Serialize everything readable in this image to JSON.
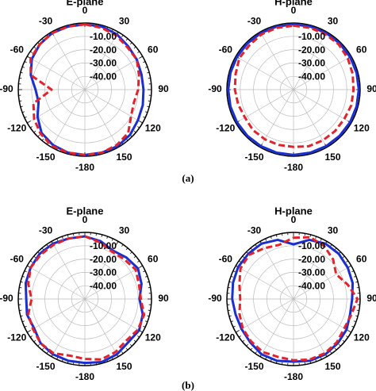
{
  "chart_data": [
    {
      "type": "polar",
      "title": "E-plane",
      "direction": "clockwise",
      "zero": "top",
      "theta": [
        0,
        15,
        30,
        45,
        60,
        75,
        90,
        105,
        120,
        135,
        150,
        165,
        180,
        195,
        210,
        225,
        240,
        255,
        270,
        285,
        300,
        315,
        330,
        345
      ],
      "thetaticks": [
        0,
        30,
        60,
        90,
        120,
        150,
        -180,
        -150,
        -120,
        -90,
        -60,
        -30
      ],
      "rlim": [
        -50,
        0
      ],
      "rticks": [
        {
          "value": -10,
          "label": "-10.00"
        },
        {
          "value": -20,
          "label": "-20.00"
        },
        {
          "value": -30,
          "label": "-30.00"
        },
        {
          "value": -40,
          "label": "-40.00"
        }
      ],
      "series": [
        {
          "color": "#1a2fd0",
          "linestyle": "solid",
          "values": [
            -1,
            -1,
            -2,
            -4,
            -5,
            -6,
            -6,
            -5,
            -4,
            -2,
            -1,
            -1,
            -1,
            -1,
            -2,
            -4,
            -9,
            -14,
            -13,
            -8,
            -4,
            -2,
            -1,
            -1
          ]
        },
        {
          "color": "#e4222b",
          "linestyle": "dashed",
          "values": [
            -1,
            -2,
            -3,
            -5,
            -5,
            -8,
            -10,
            -12,
            -10,
            -4,
            -2,
            -1,
            -1,
            -1,
            -1,
            -3,
            -6,
            -10,
            -25,
            -8,
            -3,
            -2,
            -1,
            -1
          ]
        }
      ]
    },
    {
      "type": "polar",
      "title": "H-plane",
      "direction": "clockwise",
      "zero": "top",
      "theta": [
        0,
        15,
        30,
        45,
        60,
        75,
        90,
        105,
        120,
        135,
        150,
        165,
        180,
        195,
        210,
        225,
        240,
        255,
        270,
        285,
        300,
        315,
        330,
        345
      ],
      "thetaticks": [
        0,
        30,
        60,
        90,
        120,
        150,
        -180,
        -150,
        -120,
        -90,
        -60,
        -30
      ],
      "rlim": [
        -50,
        0
      ],
      "rticks": [
        {
          "value": -10,
          "label": "-10.00"
        },
        {
          "value": -20,
          "label": "-20.00"
        },
        {
          "value": -30,
          "label": "-30.00"
        },
        {
          "value": -40,
          "label": "-40.00"
        }
      ],
      "series": [
        {
          "color": "#1a2fd0",
          "linestyle": "solid",
          "values": [
            -1,
            -1,
            -1,
            -1,
            -1,
            -1,
            -1,
            -1,
            -1,
            -1,
            -1,
            -1,
            -1,
            -1,
            -1,
            -1,
            -1,
            -1,
            -1,
            -1,
            -1,
            -1,
            -1,
            -1
          ]
        },
        {
          "color": "#e4222b",
          "linestyle": "dashed",
          "values": [
            -2,
            -2,
            -2,
            -2,
            -3,
            -4,
            -5,
            -5,
            -6,
            -6,
            -6,
            -6,
            -7,
            -7,
            -7,
            -7,
            -8,
            -7,
            -6,
            -5,
            -3,
            -3,
            -2,
            -2
          ]
        }
      ]
    },
    {
      "type": "polar",
      "title": "E-plane",
      "direction": "clockwise",
      "zero": "top",
      "theta": [
        0,
        15,
        30,
        45,
        60,
        75,
        90,
        105,
        120,
        135,
        150,
        165,
        180,
        195,
        210,
        225,
        240,
        255,
        270,
        285,
        300,
        315,
        330,
        345
      ],
      "thetaticks": [
        0,
        30,
        60,
        90,
        120,
        150,
        -180,
        -150,
        -120,
        -90,
        -60,
        -30
      ],
      "rlim": [
        -50,
        0
      ],
      "rticks": [
        {
          "value": -10,
          "label": "-10.00"
        },
        {
          "value": -20,
          "label": "-20.00"
        },
        {
          "value": -30,
          "label": "-30.00"
        },
        {
          "value": -40,
          "label": "-40.00"
        }
      ],
      "series": [
        {
          "color": "#1a2fd0",
          "linestyle": "solid",
          "values": [
            -3,
            -5,
            -8,
            -6,
            -4,
            -6,
            -9,
            -5,
            -3,
            -4,
            -2,
            -1,
            -2,
            -2,
            -2,
            -3,
            -6,
            -5,
            -6,
            -4,
            -3,
            -2,
            -2,
            -3
          ]
        },
        {
          "color": "#e4222b",
          "linestyle": "dashed",
          "values": [
            -3,
            -6,
            -9,
            -8,
            -6,
            -8,
            -8,
            -4,
            -4,
            -6,
            -4,
            -3,
            -5,
            -6,
            -3,
            -3,
            -5,
            -6,
            -10,
            -6,
            -3,
            -3,
            -3,
            -3
          ]
        }
      ]
    },
    {
      "type": "polar",
      "title": "H-plane",
      "direction": "clockwise",
      "zero": "top",
      "theta": [
        0,
        15,
        30,
        45,
        60,
        75,
        90,
        105,
        120,
        135,
        150,
        165,
        180,
        195,
        210,
        225,
        240,
        255,
        270,
        285,
        300,
        315,
        330,
        345
      ],
      "thetaticks": [
        0,
        30,
        60,
        90,
        120,
        150,
        -180,
        -150,
        -120,
        -90,
        -60,
        -30
      ],
      "rlim": [
        -50,
        0
      ],
      "rticks": [
        {
          "value": -10,
          "label": "-10.00"
        },
        {
          "value": -20,
          "label": "-20.00"
        },
        {
          "value": -30,
          "label": "-30.00"
        },
        {
          "value": -40,
          "label": "-40.00"
        }
      ],
      "series": [
        {
          "color": "#1a2fd0",
          "linestyle": "solid",
          "values": [
            -9,
            -4,
            -2,
            -2,
            -3,
            -4,
            -6,
            -6,
            -4,
            -3,
            -2,
            -2,
            -3,
            -2,
            -2,
            -4,
            -5,
            -5,
            -4,
            -3,
            -2,
            -2,
            -2,
            -4
          ]
        },
        {
          "color": "#e4222b",
          "linestyle": "dashed",
          "values": [
            -4,
            -2,
            -4,
            -8,
            -13,
            -8,
            -2,
            -5,
            -6,
            -4,
            -3,
            -3,
            -4,
            -5,
            -4,
            -5,
            -6,
            -8,
            -10,
            -8,
            -4,
            -3,
            -6,
            -8
          ]
        }
      ]
    }
  ],
  "figure_labels": [
    "(a)",
    "(b)"
  ]
}
